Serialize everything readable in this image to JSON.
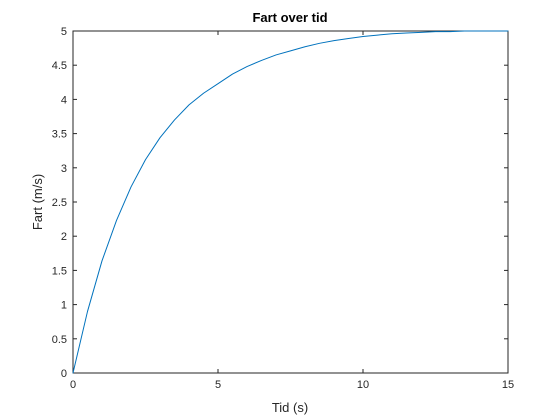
{
  "chart_data": {
    "type": "line",
    "title": "Fart over tid",
    "xlabel": "Tid (s)",
    "ylabel": "Fart (m/s)",
    "xlim": [
      0,
      15
    ],
    "ylim": [
      0,
      5
    ],
    "x_ticks": [
      "0",
      "5",
      "10",
      "15"
    ],
    "y_ticks": [
      "0",
      "0.5",
      "1",
      "1.5",
      "2",
      "2.5",
      "3",
      "3.5",
      "4",
      "4.5",
      "5"
    ],
    "grid": false,
    "series": [
      {
        "color": "#0072BD",
        "x": [
          0,
          0.5,
          1,
          1.5,
          2,
          2.5,
          3,
          3.5,
          4,
          4.5,
          5,
          5.5,
          6,
          6.5,
          7,
          7.5,
          8,
          8.5,
          9,
          9.5,
          10,
          10.5,
          11,
          11.5,
          12,
          12.5,
          13,
          13.5,
          14,
          14.5,
          15
        ],
        "y": [
          0,
          0.9,
          1.64,
          2.23,
          2.72,
          3.12,
          3.44,
          3.7,
          3.92,
          4.09,
          4.23,
          4.37,
          4.48,
          4.57,
          4.65,
          4.71,
          4.77,
          4.82,
          4.86,
          4.89,
          4.92,
          4.94,
          4.96,
          4.97,
          4.98,
          4.99,
          4.99,
          5.0,
          5.0,
          5.0,
          5.0
        ]
      }
    ]
  }
}
